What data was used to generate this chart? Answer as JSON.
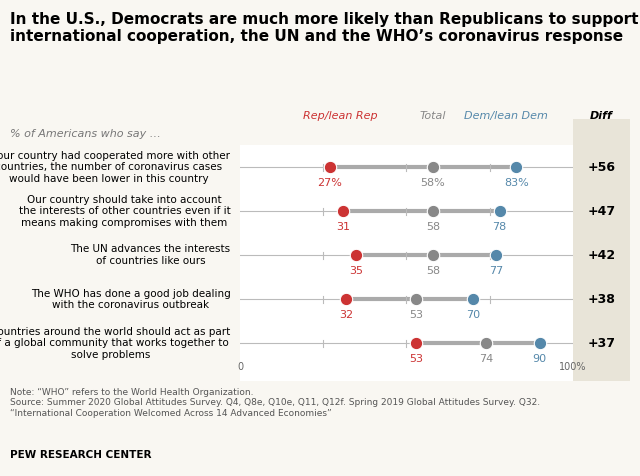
{
  "title": "In the U.S., Democrats are much more likely than Republicans to support\ninternational cooperation, the UN and the WHO’s coronavirus response",
  "subtitle": "% of Americans who say …",
  "categories": [
    "If our country had cooperated more with other\ncountries, the number of coronavirus cases\nwould have been lower in this country",
    "Our country should take into account\nthe interests of other countries even if it\nmeans making compromises with them",
    "The UN advances the interests\nof countries like ours",
    "The WHO has done a good job dealing\nwith the coronavirus outbreak",
    "Countries around the world should act as part\nof a global community that works together to\nsolve problems"
  ],
  "rep_values": [
    27,
    31,
    35,
    32,
    53
  ],
  "total_values": [
    58,
    58,
    58,
    53,
    74
  ],
  "dem_values": [
    83,
    78,
    77,
    70,
    90
  ],
  "diff_values": [
    "+56",
    "+47",
    "+42",
    "+38",
    "+37"
  ],
  "rep_color": "#cc3333",
  "total_color": "#888888",
  "dem_color": "#5588aa",
  "line_color": "#bbbbbb",
  "thick_line_color": "#aaaaaa",
  "rep_label": "Rep/lean Rep",
  "total_label": "Total",
  "dem_label": "Dem/lean Dem",
  "diff_label": "Diff",
  "note": "Note: “WHO” refers to the World Health Organization.\nSource: Summer 2020 Global Attitudes Survey. Q4, Q8e, Q10e, Q11, Q12f. Spring 2019 Global Attitudes Survey. Q32.\n“International Cooperation Welcomed Across 14 Advanced Economies”",
  "source_org": "PEW RESEARCH CENTER",
  "xmin": 0,
  "xmax": 100,
  "background_color": "#f9f7f2",
  "diff_bg_color": "#e8e4d8",
  "plot_bg_color": "#ffffff",
  "title_fontsize": 11,
  "subtitle_fontsize": 8,
  "label_fontsize": 7.5,
  "value_fontsize": 8,
  "header_fontsize": 8,
  "diff_fontsize": 9,
  "note_fontsize": 6.5,
  "source_fontsize": 7.5
}
